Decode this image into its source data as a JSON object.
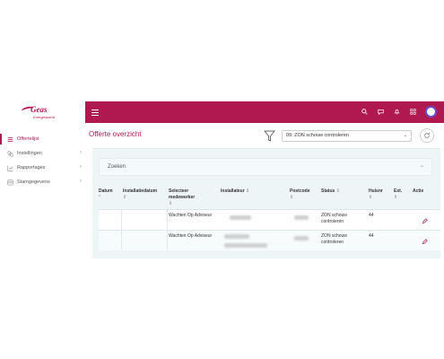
{
  "brand": {
    "name": "Geas",
    "tagline": "Energiewacht",
    "accent": "#b0194f"
  },
  "sidebar": {
    "items": [
      {
        "label": "Offertelijst",
        "icon": "list-icon",
        "active": true,
        "has_submenu": false
      },
      {
        "label": "Instellingen",
        "icon": "settings-icon",
        "active": false,
        "has_submenu": true
      },
      {
        "label": "Rapportages",
        "icon": "chart-icon",
        "active": false,
        "has_submenu": true
      },
      {
        "label": "Stamgegevens",
        "icon": "database-icon",
        "active": false,
        "has_submenu": true
      }
    ]
  },
  "topbar": {
    "icons": [
      "menu-icon",
      "search-icon",
      "chat-icon",
      "bell-icon",
      "grid-icon",
      "avatar"
    ]
  },
  "header": {
    "title": "Offerte overzicht",
    "status_filter": "09. ZON schouw controleren"
  },
  "search": {
    "label": "Zoeken"
  },
  "table": {
    "columns": [
      {
        "label": "Datum",
        "sub": "^"
      },
      {
        "label": "Installatiedatum",
        "sub": "⇕"
      },
      {
        "label": "Selecteer medewerker",
        "sub": "⇕"
      },
      {
        "label": "Installateur",
        "sub": "⇕"
      },
      {
        "label": "Postcode",
        "sub": "⇕"
      },
      {
        "label": "Status",
        "sub": "⇕"
      },
      {
        "label": "Huisnr",
        "sub": "⇕"
      },
      {
        "label": "Ext.",
        "sub": "⇕"
      },
      {
        "label": "Actie",
        "sub": ""
      }
    ],
    "rows": [
      {
        "datum": "",
        "installatiedatum": "",
        "medewerker": "Wachten Op Adviseur",
        "status": "ZON schouw controleren",
        "huisnr": "44",
        "ext": ""
      },
      {
        "datum": "",
        "installatiedatum": "",
        "medewerker": "Wachten Op Adviseur",
        "status": "ZON schouw controleren",
        "huisnr": "44",
        "ext": ""
      }
    ]
  }
}
